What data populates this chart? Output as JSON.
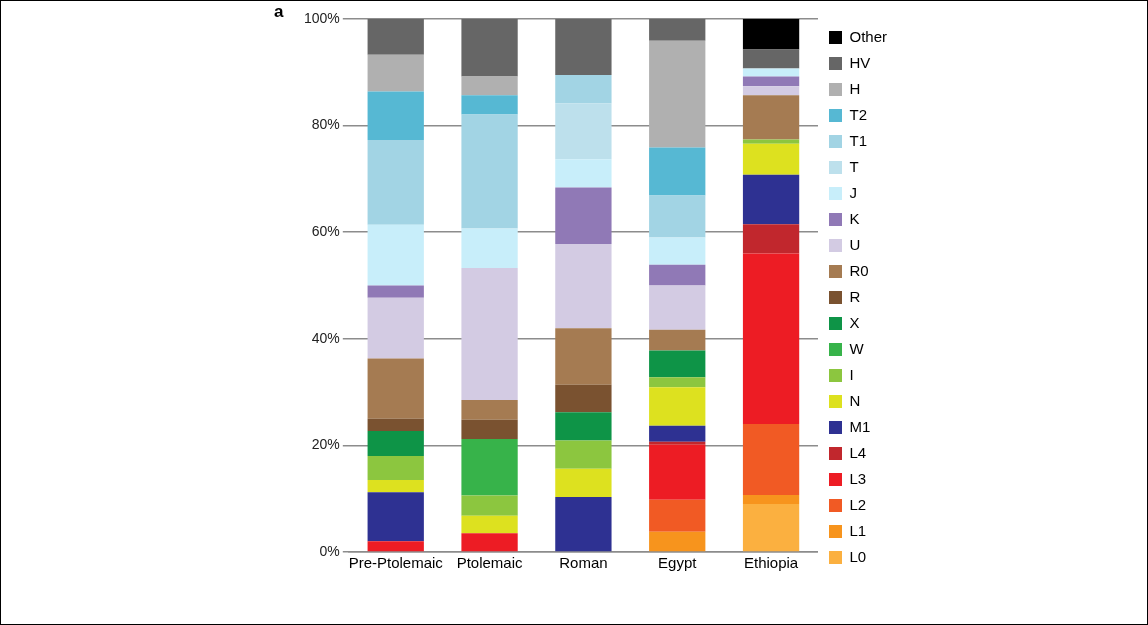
{
  "chart_data": {
    "type": "bar",
    "stacked": true,
    "legend": "right",
    "grid": "y",
    "annotations": [
      "a"
    ],
    "categories": [
      "Pre-Ptolemaic",
      "Ptolemaic",
      "Roman",
      "Egypt",
      "Ethiopia"
    ],
    "ylim": [
      0,
      100
    ],
    "yticks": [
      {
        "value": 0,
        "label": "0%"
      },
      {
        "value": 20,
        "label": "20%"
      },
      {
        "value": 40,
        "label": "40%"
      },
      {
        "value": 60,
        "label": "60%"
      },
      {
        "value": 80,
        "label": "80%"
      },
      {
        "value": 100,
        "label": "100%"
      }
    ],
    "series": [
      {
        "name": "L0",
        "color": "#fbb040",
        "values": [
          0,
          0,
          0,
          0,
          9.0
        ]
      },
      {
        "name": "L1",
        "color": "#f7941d",
        "values": [
          0,
          0,
          0,
          3.8,
          1.7
        ]
      },
      {
        "name": "L2",
        "color": "#f15a24",
        "values": [
          0,
          0,
          0,
          6.0,
          13.3
        ]
      },
      {
        "name": "L3",
        "color": "#ed1c24",
        "values": [
          2.0,
          3.5,
          0,
          10.3,
          32.0
        ]
      },
      {
        "name": "L4",
        "color": "#c1272d",
        "values": [
          0,
          0,
          0,
          0.6,
          5.5
        ]
      },
      {
        "name": "M1",
        "color": "#2e3192",
        "values": [
          9.2,
          0,
          10.3,
          3.0,
          9.3
        ]
      },
      {
        "name": "N",
        "color": "#dde11f",
        "values": [
          2.3,
          3.3,
          5.3,
          7.2,
          5.8
        ]
      },
      {
        "name": "I",
        "color": "#8cc63f",
        "values": [
          4.5,
          3.8,
          5.3,
          1.9,
          0.8
        ]
      },
      {
        "name": "W",
        "color": "#37b34a",
        "values": [
          0,
          10.6,
          0,
          0,
          0
        ]
      },
      {
        "name": "X",
        "color": "#0e9447",
        "values": [
          4.7,
          0,
          5.3,
          5.0,
          0
        ]
      },
      {
        "name": "R",
        "color": "#7a5230",
        "values": [
          2.3,
          3.6,
          5.2,
          0,
          0
        ]
      },
      {
        "name": "R0",
        "color": "#a57b52",
        "values": [
          11.3,
          3.7,
          10.6,
          3.9,
          8.3
        ]
      },
      {
        "name": "U",
        "color": "#d3cbe3",
        "values": [
          11.4,
          24.8,
          15.8,
          8.3,
          1.7
        ]
      },
      {
        "name": "K",
        "color": "#9079b6",
        "values": [
          2.3,
          0,
          10.6,
          3.9,
          1.8
        ]
      },
      {
        "name": "J",
        "color": "#c8eefa",
        "values": [
          11.4,
          7.4,
          5.3,
          5.1,
          1.5
        ]
      },
      {
        "name": "T",
        "color": "#bde0ec",
        "values": [
          0,
          0,
          10.5,
          0,
          0
        ]
      },
      {
        "name": "T1",
        "color": "#a2d4e4",
        "values": [
          15.9,
          21.4,
          5.3,
          7.9,
          0
        ]
      },
      {
        "name": "T2",
        "color": "#56b8d3",
        "values": [
          9.1,
          3.6,
          0,
          9.0,
          0
        ]
      },
      {
        "name": "H",
        "color": "#b0b0b0",
        "values": [
          6.9,
          3.5,
          0,
          20.0,
          0
        ]
      },
      {
        "name": "HV",
        "color": "#666666",
        "values": [
          6.7,
          10.8,
          10.5,
          4.1,
          3.6
        ]
      },
      {
        "name": "Other",
        "color": "#000000",
        "values": [
          0,
          0,
          0,
          0,
          5.7
        ]
      }
    ]
  }
}
